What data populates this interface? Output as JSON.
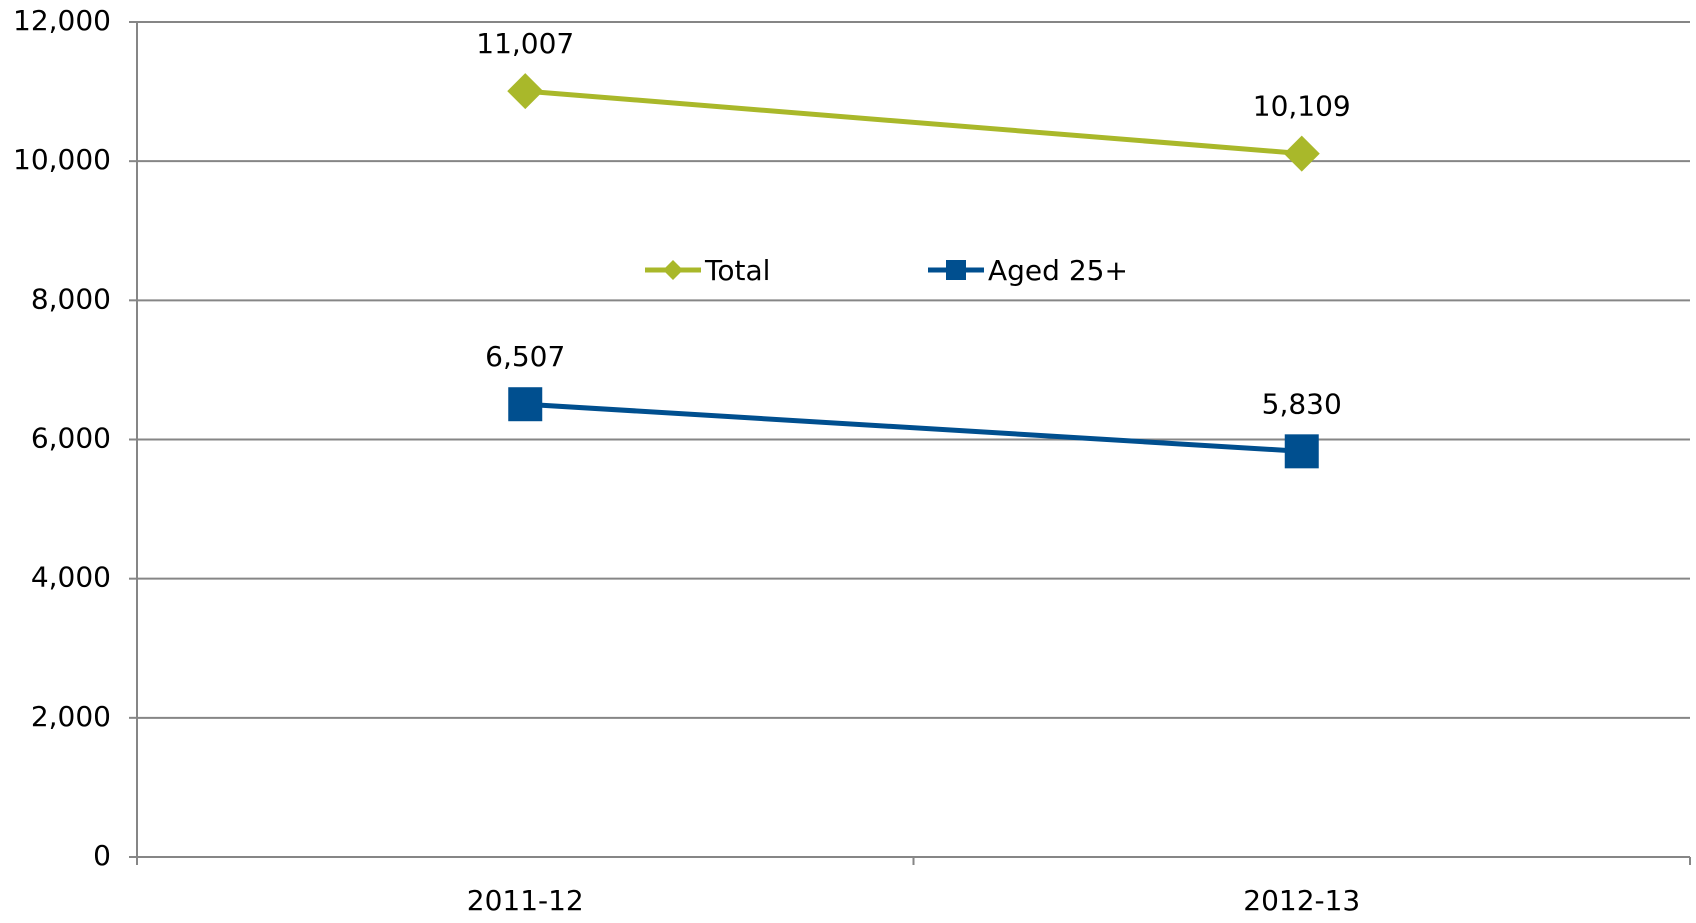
{
  "chart_data": {
    "type": "line",
    "categories": [
      "2011-12",
      "2012-13"
    ],
    "series": [
      {
        "name": "Total",
        "color": "#a9b82a",
        "marker": "diamond",
        "values": [
          11007,
          10109
        ],
        "value_labels": [
          "11,007",
          "10,109"
        ]
      },
      {
        "name": "Aged 25+",
        "color": "#004f8f",
        "marker": "square",
        "values": [
          6507,
          5830
        ],
        "value_labels": [
          "6,507",
          "5,830"
        ]
      }
    ],
    "ylim": [
      0,
      12000
    ],
    "yticks": [
      0,
      {
        "value": 2000,
        "label": "2,000"
      },
      {
        "value": 4000,
        "label": "4,000"
      },
      {
        "value": 6000,
        "label": "6,000"
      },
      {
        "value": 8000,
        "label": "8,000"
      },
      {
        "value": 10000,
        "label": "10,000"
      },
      {
        "value": 12000,
        "label": "12,000"
      }
    ],
    "grid": true,
    "legend": "center"
  }
}
